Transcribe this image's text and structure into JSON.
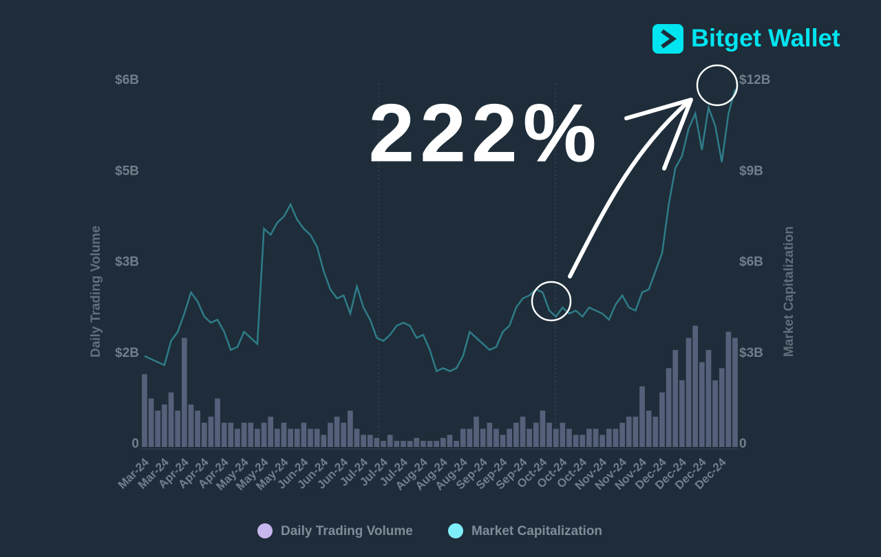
{
  "chart_data": {
    "type": "bar_line",
    "annotation": "222%",
    "brand": "Bitget Wallet",
    "ylabel": "Daily Trading Volume",
    "y2label": "Market Capitalization",
    "ylim": [
      0,
      6
    ],
    "yticks": [
      0,
      {
        "value": 1.5,
        "label": "$2B"
      },
      {
        "value": 3,
        "label": "$3B"
      },
      {
        "value": 4.5,
        "label": "$5B"
      },
      {
        "value": 6,
        "label": "$6B"
      }
    ],
    "y2lim": [
      0,
      12
    ],
    "y2ticks": [
      0,
      {
        "value": 3,
        "label": "$3B"
      },
      {
        "value": 6,
        "label": "$6B"
      },
      {
        "value": 9,
        "label": "$9B"
      },
      {
        "value": 12,
        "label": "$12B"
      }
    ],
    "categories": [
      "Mar-24",
      null,
      null,
      "Mar-24",
      null,
      null,
      "Apr-24",
      null,
      null,
      "Apr-24",
      null,
      null,
      "Apr-24",
      null,
      null,
      "May-24",
      null,
      null,
      "May-24",
      null,
      null,
      "May-24",
      null,
      null,
      "Jun-24",
      null,
      null,
      "Jun-24",
      null,
      null,
      "Jun-24",
      null,
      null,
      "Jul-24",
      null,
      null,
      "Jul-24",
      null,
      null,
      "Jul-24",
      null,
      null,
      "Aug-24",
      null,
      null,
      "Aug-24",
      null,
      null,
      "Aug-24",
      null,
      null,
      "Sep-24",
      null,
      null,
      "Sep-24",
      null,
      null,
      "Sep-24",
      null,
      null,
      "Oct-24",
      null,
      null,
      "Oct-24",
      null,
      null,
      "Oct-24",
      null,
      null,
      "Nov-24",
      null,
      null,
      "Nov-24",
      null,
      null,
      "Nov-24",
      null,
      null,
      "Dec-24",
      null,
      null,
      "Dec-24",
      null,
      null,
      "Dec-24",
      null,
      null,
      "Dec-24",
      null,
      null
    ],
    "series": [
      {
        "name": "Daily Trading Volume",
        "type": "bar",
        "color": "#56607a",
        "legend_color": "#c8b6ee",
        "values": [
          1.2,
          0.8,
          0.6,
          0.7,
          0.9,
          0.6,
          1.8,
          0.7,
          0.6,
          0.4,
          0.5,
          0.8,
          0.4,
          0.4,
          0.3,
          0.4,
          0.4,
          0.3,
          0.4,
          0.5,
          0.3,
          0.4,
          0.3,
          0.3,
          0.4,
          0.3,
          0.3,
          0.2,
          0.4,
          0.5,
          0.4,
          0.6,
          0.3,
          0.2,
          0.2,
          0.15,
          0.1,
          0.2,
          0.1,
          0.1,
          0.1,
          0.15,
          0.1,
          0.1,
          0.1,
          0.15,
          0.2,
          0.1,
          0.3,
          0.3,
          0.5,
          0.3,
          0.4,
          0.3,
          0.2,
          0.3,
          0.4,
          0.5,
          0.3,
          0.4,
          0.6,
          0.4,
          0.3,
          0.4,
          0.3,
          0.2,
          0.2,
          0.3,
          0.3,
          0.2,
          0.3,
          0.3,
          0.4,
          0.5,
          0.5,
          1.0,
          0.6,
          0.5,
          0.9,
          1.3,
          1.6,
          1.1,
          1.8,
          2.0,
          1.4,
          1.6,
          1.1,
          1.3,
          1.9,
          1.8
        ]
      },
      {
        "name": "Market Capitalization",
        "type": "line",
        "axis": "y2",
        "color": "#2f7c89",
        "legend_color": "#7ff0fb",
        "values": [
          3.0,
          2.9,
          2.8,
          2.7,
          3.5,
          3.8,
          4.4,
          5.1,
          4.8,
          4.3,
          4.1,
          4.2,
          3.8,
          3.2,
          3.3,
          3.8,
          3.6,
          3.4,
          7.2,
          7.0,
          7.4,
          7.6,
          8.0,
          7.5,
          7.2,
          7.0,
          6.6,
          5.8,
          5.2,
          4.9,
          5.0,
          4.4,
          5.3,
          4.6,
          4.2,
          3.6,
          3.5,
          3.7,
          4.0,
          4.1,
          4.0,
          3.6,
          3.7,
          3.2,
          2.5,
          2.6,
          2.5,
          2.6,
          3.0,
          3.8,
          3.6,
          3.4,
          3.2,
          3.3,
          3.8,
          4.0,
          4.6,
          4.9,
          5.0,
          5.2,
          5.1,
          4.5,
          4.3,
          4.6,
          4.4,
          4.5,
          4.3,
          4.6,
          4.5,
          4.4,
          4.2,
          4.7,
          5.0,
          4.6,
          4.5,
          5.1,
          5.2,
          5.8,
          6.4,
          8.0,
          9.2,
          9.6,
          10.5,
          11.0,
          9.8,
          11.2,
          10.6,
          9.4,
          11.0,
          11.8
        ]
      }
    ]
  }
}
